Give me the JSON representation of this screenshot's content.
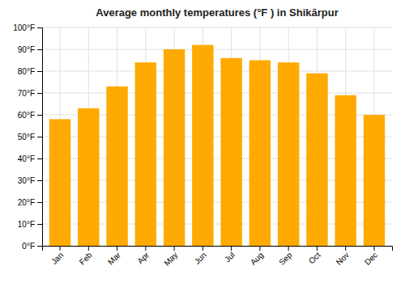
{
  "chart_data": {
    "type": "bar",
    "title": "Average monthly temperatures (°F ) in Shikārpur",
    "categories": [
      "Jan",
      "Feb",
      "Mar",
      "Apr",
      "May",
      "Jun",
      "Jul",
      "Aug",
      "Sep",
      "Oct",
      "Nov",
      "Dec"
    ],
    "values": [
      58,
      63,
      73,
      84,
      90,
      92,
      86,
      85,
      84,
      79,
      69,
      60
    ],
    "color": "#FFAA00",
    "ylim": [
      0,
      100
    ],
    "yticks": [
      {
        "value": 0,
        "label": "0°F"
      },
      {
        "value": 10,
        "label": "10°F"
      },
      {
        "value": 20,
        "label": "20°F"
      },
      {
        "value": 30,
        "label": "30°F"
      },
      {
        "value": 40,
        "label": "40°F"
      },
      {
        "value": 50,
        "label": "50°F"
      },
      {
        "value": 60,
        "label": "60°F"
      },
      {
        "value": 70,
        "label": "70°F"
      },
      {
        "value": 80,
        "label": "80°F"
      },
      {
        "value": 90,
        "label": "90°F"
      },
      {
        "value": 100,
        "label": "100°F"
      }
    ],
    "grid": true
  }
}
